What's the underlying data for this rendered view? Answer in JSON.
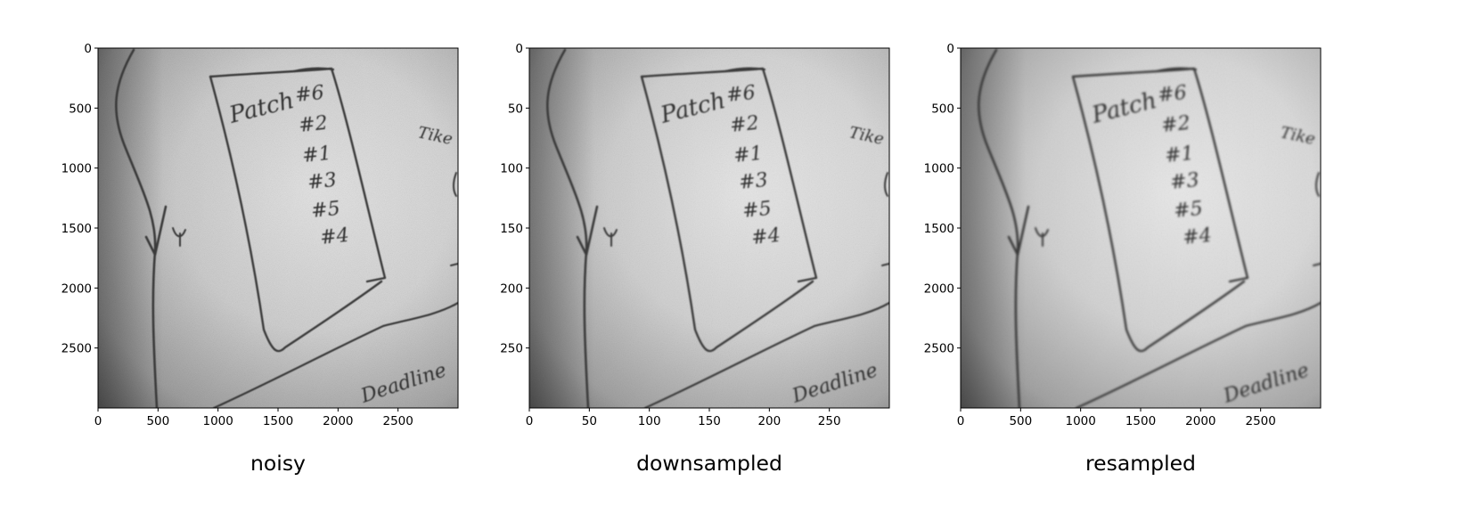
{
  "figure": {
    "background": "#ffffff",
    "image_colormap": "gray",
    "image_description": "grayscale photograph of a whiteboard with handwriting: a box containing a list and a wavy line below",
    "panels": [
      {
        "title": "noisy",
        "x_ticks": [
          "0",
          "500",
          "1000",
          "1500",
          "2000",
          "2500"
        ],
        "y_ticks": [
          "0",
          "500",
          "1000",
          "1500",
          "2000",
          "2500"
        ],
        "x_range": [
          0,
          3000
        ],
        "y_range": [
          0,
          3000
        ],
        "texture": "noisy"
      },
      {
        "title": "downsampled",
        "x_ticks": [
          "0",
          "50",
          "100",
          "150",
          "200",
          "250"
        ],
        "y_ticks": [
          "0",
          "50",
          "100",
          "150",
          "200",
          "250"
        ],
        "x_range": [
          0,
          300
        ],
        "y_range": [
          0,
          300
        ],
        "texture": "grainy"
      },
      {
        "title": "resampled",
        "x_ticks": [
          "0",
          "500",
          "1000",
          "1500",
          "2000",
          "2500"
        ],
        "y_ticks": [
          "0",
          "500",
          "1000",
          "1500",
          "2000",
          "2500"
        ],
        "x_range": [
          0,
          3000
        ],
        "y_range": [
          0,
          3000
        ],
        "texture": "smooth"
      }
    ],
    "whiteboard_text": {
      "header": "Patch",
      "list": [
        "#6",
        "#2",
        "#1",
        "#3",
        "#5",
        "#4"
      ],
      "margin_right": "Tike",
      "margin_left": "Vy",
      "bottom": "Deadline"
    }
  }
}
